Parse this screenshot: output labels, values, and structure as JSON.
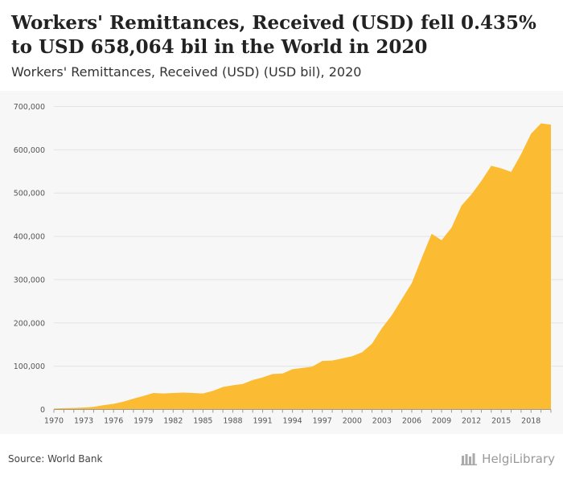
{
  "title": "Workers' Remittances, Received (USD) fell 0.435% to USD 658,064 bil in the World in 2020",
  "subtitle": "Workers' Remittances, Received (USD) (USD bil), 2020",
  "source": "Source: World Bank",
  "brand": "HelgiLibrary",
  "colors": {
    "area": "#FBBB32",
    "grid": "#e3e3e3",
    "axis": "#999999"
  },
  "chart_data": {
    "type": "area",
    "title": "",
    "xlabel": "",
    "ylabel": "",
    "ylim": [
      0,
      700000
    ],
    "xlim": [
      1970,
      2020
    ],
    "yticks": [
      0,
      100000,
      200000,
      300000,
      400000,
      500000,
      600000,
      700000
    ],
    "ytick_labels": [
      "0",
      "100,000",
      "200,000",
      "300,000",
      "400,000",
      "500,000",
      "600,000",
      "700,000"
    ],
    "xtick_labels": [
      "1970",
      "1973",
      "1976",
      "1979",
      "1982",
      "1985",
      "1988",
      "1991",
      "1994",
      "1997",
      "2000",
      "2003",
      "2006",
      "2009",
      "2012",
      "2015",
      "2018"
    ],
    "grid": true,
    "legend": "none",
    "x": [
      1970,
      1971,
      1972,
      1973,
      1974,
      1975,
      1976,
      1977,
      1978,
      1979,
      1980,
      1981,
      1982,
      1983,
      1984,
      1985,
      1986,
      1987,
      1988,
      1989,
      1990,
      1991,
      1992,
      1993,
      1994,
      1995,
      1996,
      1997,
      1998,
      1999,
      2000,
      2001,
      2002,
      2003,
      2004,
      2005,
      2006,
      2007,
      2008,
      2009,
      2010,
      2011,
      2012,
      2013,
      2014,
      2015,
      2016,
      2017,
      2018,
      2019,
      2020
    ],
    "values": [
      2000,
      3000,
      3500,
      4500,
      6000,
      10000,
      13000,
      18000,
      25000,
      31000,
      38000,
      37000,
      38000,
      39000,
      38000,
      37000,
      43000,
      52000,
      56000,
      59000,
      68000,
      74000,
      82000,
      83000,
      93000,
      96000,
      99000,
      112000,
      113000,
      118000,
      123000,
      132000,
      152000,
      188000,
      218000,
      255000,
      292000,
      350000,
      406000,
      391000,
      420000,
      471000,
      497000,
      528000,
      563000,
      557000,
      549000,
      590000,
      637000,
      661000,
      658064
    ]
  }
}
